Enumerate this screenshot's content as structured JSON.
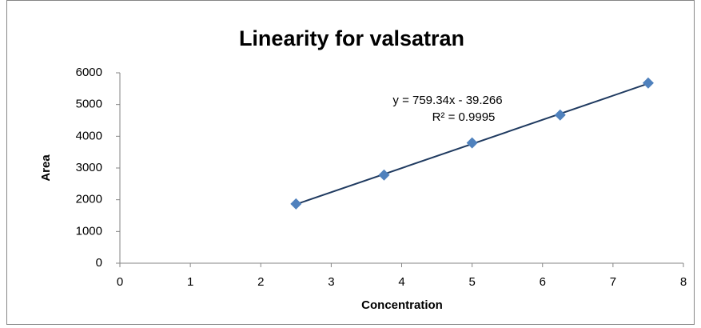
{
  "chart_data": {
    "type": "scatter",
    "title": "Linearity for valsatran",
    "x_label": "Concentration",
    "y_label": "Area",
    "annotations": [
      "y = 759.34x - 39.266",
      "R² = 0.9995"
    ],
    "series": [
      {
        "name": "Area",
        "color": "#4f81bd",
        "x": [
          2.5,
          3.75,
          5,
          6.25,
          7.5
        ],
        "values": [
          1870,
          2780,
          3790,
          4670,
          5680
        ]
      }
    ],
    "trendline": true,
    "trendline_color": "#1f3a60",
    "xlim": [
      0,
      8
    ],
    "xticks": [
      0,
      1,
      2,
      3,
      4,
      5,
      6,
      7,
      8
    ],
    "ylim": [
      0,
      6000
    ],
    "yticks": [
      0,
      1000,
      2000,
      3000,
      4000,
      5000,
      6000
    ]
  }
}
